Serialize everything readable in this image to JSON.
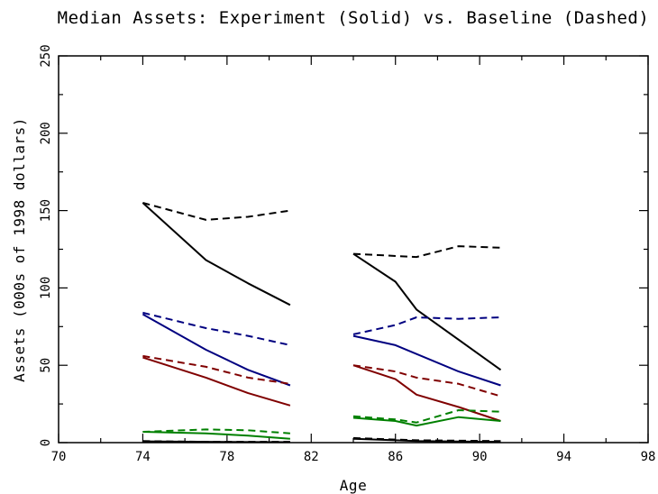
{
  "chart_data": {
    "type": "line",
    "title": "Median Assets:  Experiment (Solid) vs. Baseline (Dashed)",
    "xlabel": "Age",
    "ylabel": "Assets (000s of 1998 dollars)",
    "xlim": [
      70,
      98
    ],
    "ylim": [
      0,
      250
    ],
    "xticks": [
      "70",
      "74",
      "78",
      "82",
      "86",
      "90",
      "94",
      "98"
    ],
    "yticks": [
      "0",
      "50",
      "100",
      "150",
      "200",
      "250"
    ],
    "grid": false,
    "legend": "none",
    "series": [
      {
        "color": "#000000",
        "style": "dashed",
        "segments": [
          [
            [
              74,
              155
            ],
            [
              77,
              144
            ],
            [
              79,
              146
            ],
            [
              81,
              150
            ]
          ],
          [
            [
              84,
              122
            ],
            [
              87,
              120
            ],
            [
              89,
              127
            ],
            [
              91,
              126
            ]
          ]
        ]
      },
      {
        "color": "#000000",
        "style": "solid",
        "segments": [
          [
            [
              74,
              155
            ],
            [
              77,
              118
            ],
            [
              79,
              103
            ],
            [
              81,
              89
            ]
          ],
          [
            [
              84,
              122
            ],
            [
              86,
              104
            ],
            [
              87,
              86
            ],
            [
              91,
              47
            ]
          ]
        ]
      },
      {
        "color": "#000080",
        "style": "dashed",
        "segments": [
          [
            [
              74,
              84
            ],
            [
              77,
              74
            ],
            [
              79,
              69
            ],
            [
              81,
              63
            ]
          ],
          [
            [
              84,
              70
            ],
            [
              86,
              76
            ],
            [
              87,
              81
            ],
            [
              89,
              80
            ],
            [
              91,
              81
            ]
          ]
        ]
      },
      {
        "color": "#000080",
        "style": "solid",
        "segments": [
          [
            [
              74,
              83
            ],
            [
              77,
              60
            ],
            [
              79,
              47
            ],
            [
              81,
              37
            ]
          ],
          [
            [
              84,
              69
            ],
            [
              86,
              63
            ],
            [
              89,
              46
            ],
            [
              91,
              37
            ]
          ]
        ]
      },
      {
        "color": "#800000",
        "style": "dashed",
        "segments": [
          [
            [
              74,
              56
            ],
            [
              77,
              49
            ],
            [
              79,
              42
            ],
            [
              81,
              38
            ]
          ],
          [
            [
              84,
              50
            ],
            [
              86,
              46
            ],
            [
              87,
              42
            ],
            [
              89,
              38
            ],
            [
              91,
              30
            ]
          ]
        ]
      },
      {
        "color": "#800000",
        "style": "solid",
        "segments": [
          [
            [
              74,
              55
            ],
            [
              77,
              42
            ],
            [
              79,
              32
            ],
            [
              81,
              24
            ]
          ],
          [
            [
              84,
              50
            ],
            [
              86,
              41
            ],
            [
              87,
              31
            ],
            [
              89,
              23
            ],
            [
              91,
              14
            ]
          ]
        ]
      },
      {
        "color": "#008000",
        "style": "dashed",
        "segments": [
          [
            [
              74,
              7
            ],
            [
              77,
              8.5
            ],
            [
              79,
              8
            ],
            [
              81,
              6
            ]
          ],
          [
            [
              84,
              17
            ],
            [
              86,
              15
            ],
            [
              87,
              13
            ],
            [
              89,
              21
            ],
            [
              91,
              20
            ]
          ]
        ]
      },
      {
        "color": "#008000",
        "style": "solid",
        "segments": [
          [
            [
              74,
              7
            ],
            [
              77,
              6
            ],
            [
              79,
              4.5
            ],
            [
              81,
              2.5
            ]
          ],
          [
            [
              84,
              16
            ],
            [
              86,
              14
            ],
            [
              87,
              11
            ],
            [
              89,
              16.5
            ],
            [
              91,
              14
            ]
          ]
        ]
      },
      {
        "color": "#000000",
        "style": "dashed",
        "segments": [
          [
            [
              74,
              1
            ],
            [
              77,
              0.5
            ],
            [
              81,
              0.5
            ]
          ],
          [
            [
              84,
              3
            ],
            [
              86,
              2
            ],
            [
              87,
              1.5
            ],
            [
              91,
              1
            ]
          ]
        ]
      },
      {
        "color": "#000000",
        "style": "solid",
        "segments": [
          [
            [
              74,
              0.8
            ],
            [
              77,
              0.5
            ],
            [
              81,
              0.3
            ]
          ],
          [
            [
              84,
              2.5
            ],
            [
              86,
              1.5
            ],
            [
              87,
              1
            ],
            [
              91,
              0.5
            ]
          ]
        ]
      }
    ]
  }
}
